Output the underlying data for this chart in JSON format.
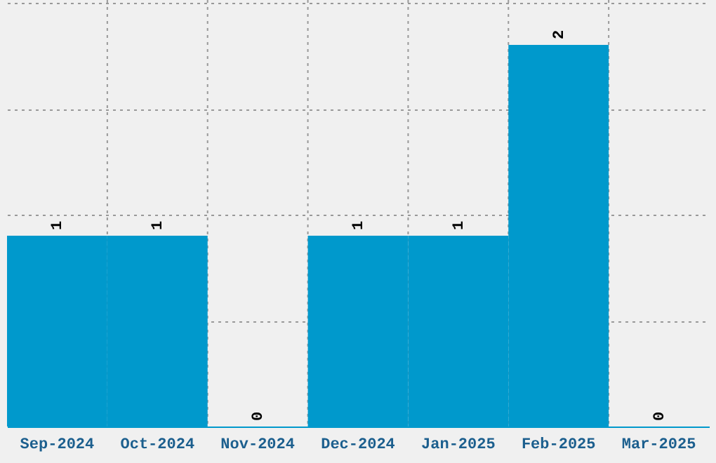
{
  "chart_data": {
    "type": "bar",
    "categories": [
      "Sep-2024",
      "Oct-2024",
      "Nov-2024",
      "Dec-2024",
      "Jan-2025",
      "Feb-2025",
      "Mar-2025"
    ],
    "values": [
      1,
      1,
      0,
      1,
      1,
      2,
      0
    ],
    "color": "#0099cc",
    "data_labels": true,
    "ylim": [
      0,
      2.235
    ],
    "yticks": [
      {
        "value": 0.555,
        "label": null
      },
      {
        "value": 1.11,
        "label": null
      },
      {
        "value": 1.665,
        "label": null
      },
      {
        "value": 2.22,
        "label": null
      }
    ],
    "grid": true,
    "tick_labels": "x"
  }
}
